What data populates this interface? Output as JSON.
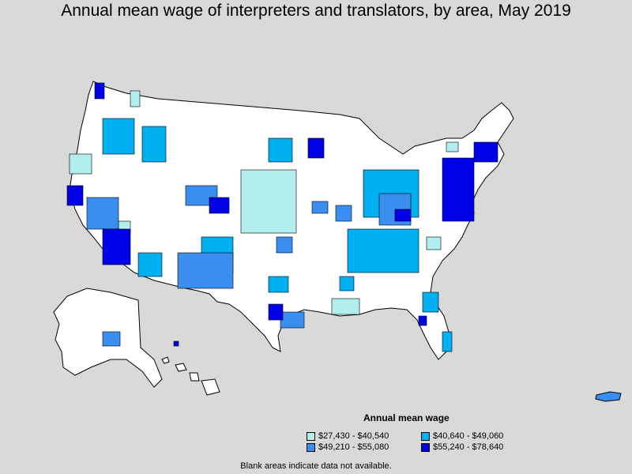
{
  "title": "Annual mean wage of interpreters and translators, by area, May 2019",
  "legend": {
    "title": "Annual mean wage",
    "items": [
      {
        "label": "$27,430 - $40,540",
        "color": "#b3eeee"
      },
      {
        "label": "$40,640 - $49,060",
        "color": "#00b0f0"
      },
      {
        "label": "$49,210 - $55,080",
        "color": "#3a8ef0"
      },
      {
        "label": "$55,240 - $78,640",
        "color": "#0000e6"
      }
    ]
  },
  "footnote": "Blank areas indicate data not available."
}
